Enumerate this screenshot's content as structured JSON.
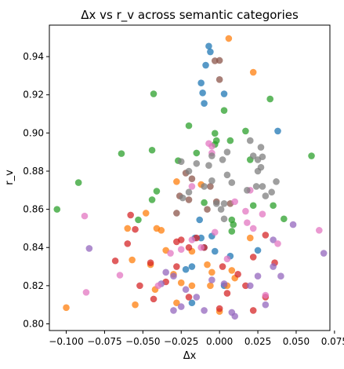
{
  "chart_data": {
    "type": "scatter",
    "title": "Δx vs r_v across semantic categories",
    "xlabel": "Δx",
    "ylabel": "r_v",
    "xlim": [
      -0.111,
      0.072
    ],
    "ylim": [
      0.7965,
      0.9565
    ],
    "xticks": [
      {
        "value": -0.1,
        "label": "−0.100"
      },
      {
        "value": -0.075,
        "label": "−0.075"
      },
      {
        "value": -0.05,
        "label": "−0.050"
      },
      {
        "value": -0.025,
        "label": "−0.025"
      },
      {
        "value": 0.0,
        "label": "0.000"
      },
      {
        "value": 0.025,
        "label": "0.025"
      },
      {
        "value": 0.05,
        "label": "0.050"
      },
      {
        "value": 0.075,
        "label": "0.075"
      }
    ],
    "yticks": [
      {
        "value": 0.8,
        "label": "0.80"
      },
      {
        "value": 0.82,
        "label": "0.82"
      },
      {
        "value": 0.84,
        "label": "0.84"
      },
      {
        "value": 0.86,
        "label": "0.86"
      },
      {
        "value": 0.88,
        "label": "0.88"
      },
      {
        "value": 0.9,
        "label": "0.90"
      },
      {
        "value": 0.92,
        "label": "0.92"
      },
      {
        "value": 0.94,
        "label": "0.94"
      }
    ],
    "grid": false,
    "legend": false,
    "series": [
      {
        "color": "#1f77b4",
        "points": [
          [
            -0.007,
            0.9455
          ],
          [
            -0.006,
            0.9425
          ],
          [
            -0.009,
            0.9355
          ],
          [
            -0.012,
            0.9262
          ],
          [
            -0.011,
            0.921
          ],
          [
            -0.01,
            0.9155
          ],
          [
            0.003,
            0.9205
          ],
          [
            0.038,
            0.901
          ],
          [
            -0.013,
            0.8545
          ],
          [
            -0.012,
            0.845
          ],
          [
            -0.016,
            0.845
          ],
          [
            -0.005,
            0.846
          ],
          [
            -0.003,
            0.838
          ],
          [
            0.007,
            0.8355
          ],
          [
            0.025,
            0.8385
          ],
          [
            -0.018,
            0.83
          ],
          [
            -0.022,
            0.8285
          ],
          [
            -0.01,
            0.84
          ],
          [
            0.003,
            0.82
          ],
          [
            -0.018,
            0.811
          ]
        ]
      },
      {
        "color": "#ff7f0e",
        "points": [
          [
            0.006,
            0.9495
          ],
          [
            0.022,
            0.9318
          ],
          [
            -0.028,
            0.8745
          ],
          [
            -0.012,
            0.873
          ],
          [
            -0.048,
            0.858
          ],
          [
            -0.06,
            0.85
          ],
          [
            -0.041,
            0.85
          ],
          [
            -0.038,
            0.849
          ],
          [
            -0.035,
            0.8385
          ],
          [
            -0.018,
            0.838
          ],
          [
            -0.045,
            0.831
          ],
          [
            -0.008,
            0.831
          ],
          [
            -0.057,
            0.8335
          ],
          [
            -0.03,
            0.826
          ],
          [
            -0.025,
            0.8215
          ],
          [
            -0.005,
            0.827
          ],
          [
            0.008,
            0.828
          ],
          [
            0.01,
            0.824
          ],
          [
            -0.006,
            0.82
          ],
          [
            -0.042,
            0.818
          ],
          [
            -0.055,
            0.81
          ],
          [
            -0.1,
            0.8085
          ],
          [
            -0.028,
            0.811
          ],
          [
            0.0,
            0.8065
          ],
          [
            0.005,
            0.82
          ],
          [
            0.02,
            0.845
          ],
          [
            -0.018,
            0.82
          ]
        ]
      },
      {
        "color": "#2ca02c",
        "points": [
          [
            -0.043,
            0.9205
          ],
          [
            0.033,
            0.9178
          ],
          [
            0.003,
            0.9118
          ],
          [
            -0.02,
            0.9038
          ],
          [
            -0.064,
            0.8892
          ],
          [
            -0.044,
            0.891
          ],
          [
            -0.027,
            0.8855
          ],
          [
            0.017,
            0.901
          ],
          [
            -0.003,
            0.8998
          ],
          [
            -0.002,
            0.896
          ],
          [
            0.007,
            0.896
          ],
          [
            -0.003,
            0.894
          ],
          [
            -0.015,
            0.8895
          ],
          [
            0.02,
            0.886
          ],
          [
            -0.092,
            0.874
          ],
          [
            -0.041,
            0.8695
          ],
          [
            -0.044,
            0.865
          ],
          [
            -0.106,
            0.86
          ],
          [
            -0.053,
            0.8545
          ],
          [
            0.035,
            0.862
          ],
          [
            0.042,
            0.855
          ],
          [
            0.022,
            0.862
          ],
          [
            0.008,
            0.8545
          ],
          [
            0.009,
            0.852
          ],
          [
            0.008,
            0.8485
          ],
          [
            -0.01,
            0.8635
          ],
          [
            0.06,
            0.888
          ]
        ]
      },
      {
        "color": "#d62728",
        "points": [
          [
            -0.058,
            0.857
          ],
          [
            -0.055,
            0.8495
          ],
          [
            -0.028,
            0.843
          ],
          [
            -0.025,
            0.844
          ],
          [
            -0.02,
            0.84
          ],
          [
            -0.015,
            0.845
          ],
          [
            -0.01,
            0.84
          ],
          [
            -0.045,
            0.832
          ],
          [
            -0.06,
            0.842
          ],
          [
            -0.068,
            0.833
          ],
          [
            -0.052,
            0.82
          ],
          [
            -0.043,
            0.813
          ],
          [
            -0.035,
            0.822
          ],
          [
            -0.028,
            0.83
          ],
          [
            -0.02,
            0.814
          ],
          [
            0.002,
            0.83
          ],
          [
            0.012,
            0.826
          ],
          [
            0.017,
            0.82
          ],
          [
            0.022,
            0.835
          ],
          [
            0.03,
            0.8465
          ],
          [
            0.036,
            0.832
          ],
          [
            0.03,
            0.814
          ],
          [
            0.005,
            0.816
          ],
          [
            0.0,
            0.808
          ],
          [
            0.022,
            0.807
          ]
        ]
      },
      {
        "color": "#9467bd",
        "points": [
          [
            -0.085,
            0.8395
          ],
          [
            -0.035,
            0.827
          ],
          [
            -0.03,
            0.825
          ],
          [
            -0.038,
            0.821
          ],
          [
            -0.022,
            0.818
          ],
          [
            -0.03,
            0.807
          ],
          [
            -0.025,
            0.809
          ],
          [
            -0.01,
            0.807
          ],
          [
            0.01,
            0.804
          ],
          [
            0.02,
            0.82
          ],
          [
            0.025,
            0.825
          ],
          [
            0.035,
            0.83
          ],
          [
            0.04,
            0.825
          ],
          [
            0.035,
            0.844
          ],
          [
            0.048,
            0.852
          ],
          [
            0.068,
            0.837
          ],
          [
            -0.005,
            0.823
          ],
          [
            0.003,
            0.821
          ],
          [
            -0.015,
            0.814
          ],
          [
            0.008,
            0.806
          ],
          [
            0.03,
            0.81
          ]
        ]
      },
      {
        "color": "#8c564b",
        "points": [
          [
            -0.003,
            0.9378
          ],
          [
            0.0,
            0.938
          ],
          [
            0.0,
            0.928
          ],
          [
            -0.022,
            0.879
          ],
          [
            -0.018,
            0.876
          ],
          [
            -0.006,
            0.872
          ],
          [
            -0.026,
            0.867
          ],
          [
            -0.02,
            0.865
          ],
          [
            -0.002,
            0.864
          ],
          [
            0.007,
            0.863
          ],
          [
            -0.008,
            0.86
          ],
          [
            -0.028,
            0.858
          ]
        ]
      },
      {
        "color": "#e377c2",
        "points": [
          [
            -0.007,
            0.8945
          ],
          [
            -0.005,
            0.893
          ],
          [
            -0.005,
            0.8895
          ],
          [
            -0.088,
            0.8565
          ],
          [
            -0.025,
            0.839
          ],
          [
            -0.018,
            0.844
          ],
          [
            -0.003,
            0.848
          ],
          [
            -0.032,
            0.837
          ],
          [
            -0.04,
            0.82
          ],
          [
            -0.065,
            0.8255
          ],
          [
            0.005,
            0.834
          ],
          [
            0.017,
            0.859
          ],
          [
            0.028,
            0.8575
          ],
          [
            0.01,
            0.864
          ],
          [
            -0.018,
            0.872
          ],
          [
            0.02,
            0.87
          ],
          [
            0.018,
            0.853
          ],
          [
            0.022,
            0.85
          ],
          [
            0.065,
            0.849
          ],
          [
            -0.087,
            0.8165
          ],
          [
            0.03,
            0.815
          ],
          [
            -0.012,
            0.84
          ],
          [
            0.038,
            0.842
          ]
        ]
      },
      {
        "color": "#7f7f7f",
        "points": [
          [
            0.02,
            0.896
          ],
          [
            0.022,
            0.888
          ],
          [
            0.027,
            0.8925
          ],
          [
            0.028,
            0.8875
          ],
          [
            0.025,
            0.886
          ],
          [
            0.027,
            0.882
          ],
          [
            0.025,
            0.88
          ],
          [
            0.005,
            0.89
          ],
          [
            0.002,
            0.886
          ],
          [
            -0.005,
            0.888
          ],
          [
            -0.007,
            0.883
          ],
          [
            -0.015,
            0.884
          ],
          [
            -0.025,
            0.885
          ],
          [
            -0.02,
            0.88
          ],
          [
            0.005,
            0.878
          ],
          [
            0.008,
            0.874
          ],
          [
            0.028,
            0.872
          ],
          [
            0.018,
            0.87
          ],
          [
            -0.01,
            0.872
          ],
          [
            -0.005,
            0.875
          ],
          [
            -0.02,
            0.869
          ],
          [
            -0.024,
            0.866
          ],
          [
            0.003,
            0.863
          ],
          [
            -0.002,
            0.863
          ],
          [
            0.001,
            0.86
          ],
          [
            0.024,
            0.872
          ],
          [
            0.037,
            0.8745
          ],
          [
            0.034,
            0.869
          ],
          [
            0.03,
            0.867
          ],
          [
            0.003,
            0.855
          ]
        ]
      }
    ]
  }
}
